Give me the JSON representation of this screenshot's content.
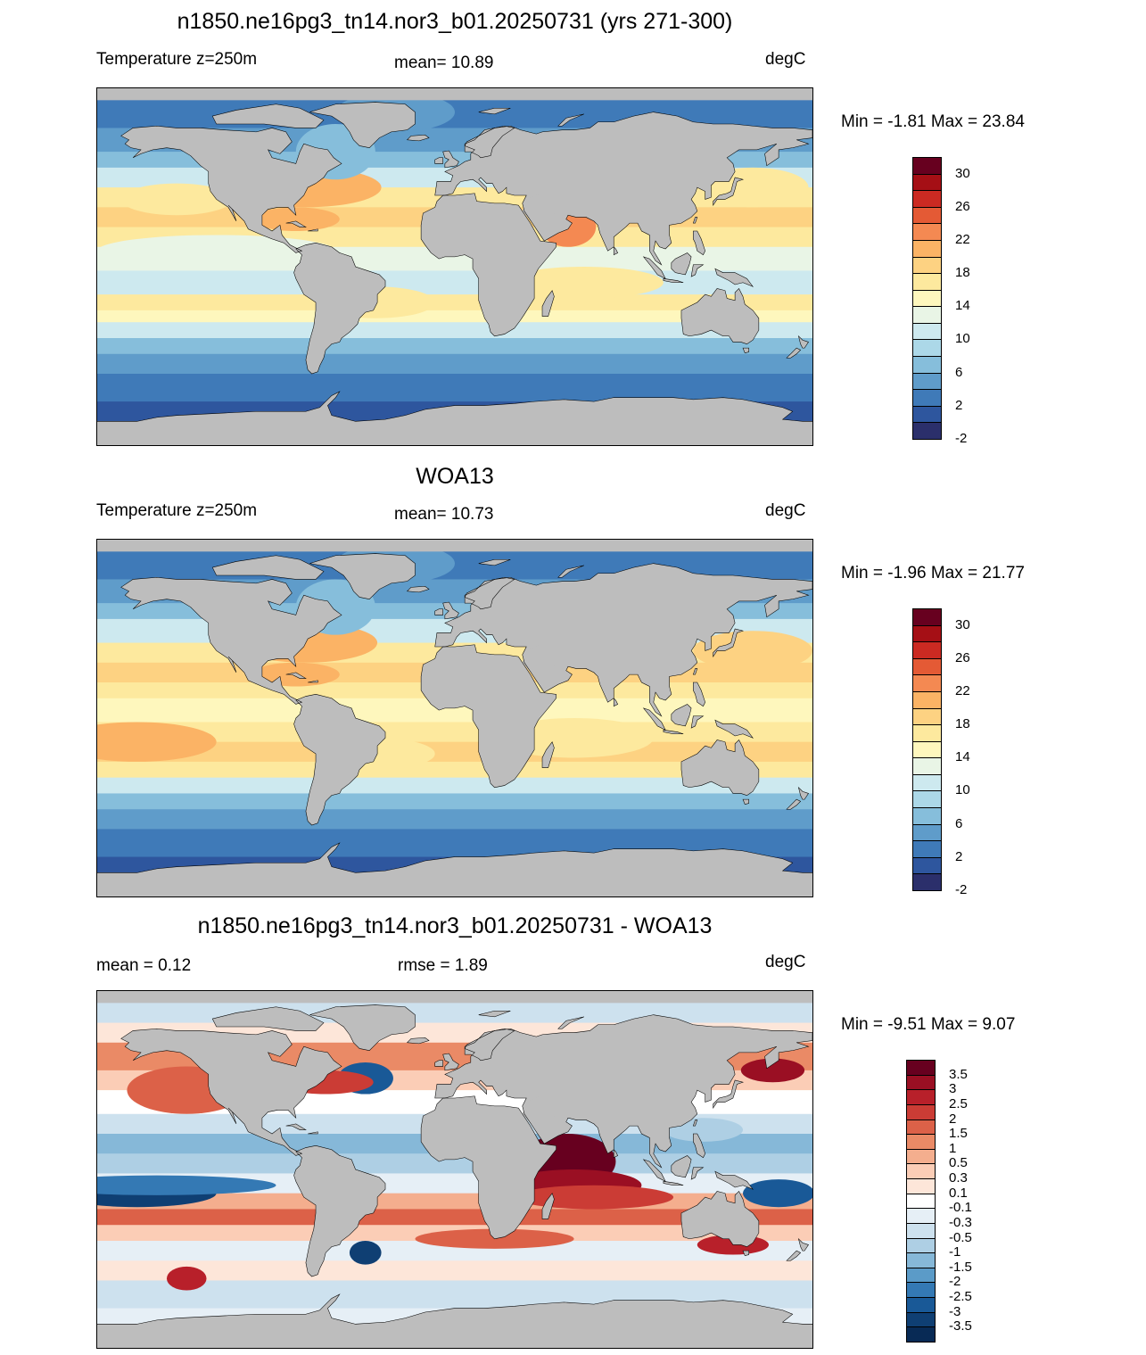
{
  "panels": [
    {
      "id": "model",
      "title": "n1850.ne16pg3_tn14.nor3_b01.20250731 (yrs 271-300)",
      "left_label": "Temperature z=250m",
      "center_label": "mean=  10.89",
      "units": "degC",
      "minmax": "Min =  -1.81 Max =  23.84",
      "colorbar": {
        "labels": [
          "30",
          "26",
          "22",
          "18",
          "14",
          "10",
          "6",
          "2",
          "-2"
        ],
        "colors": [
          "#67001f",
          "#a50f15",
          "#cb2a22",
          "#e45a35",
          "#f48952",
          "#fbb365",
          "#fdd282",
          "#fde99e",
          "#fef7bd",
          "#e9f5e6",
          "#cde9ef",
          "#acd8e8",
          "#86bedb",
          "#5f9cca",
          "#3f7ab8",
          "#2e569e",
          "#2b2f6b"
        ]
      },
      "field": "model"
    },
    {
      "id": "obs",
      "title": "WOA13",
      "left_label": "Temperature z=250m",
      "center_label": "mean=  10.73",
      "units": "degC",
      "minmax": "Min =  -1.96 Max =  21.77",
      "colorbar": {
        "labels": [
          "30",
          "26",
          "22",
          "18",
          "14",
          "10",
          "6",
          "2",
          "-2"
        ],
        "colors": [
          "#67001f",
          "#a50f15",
          "#cb2a22",
          "#e45a35",
          "#f48952",
          "#fbb365",
          "#fdd282",
          "#fde99e",
          "#fef7bd",
          "#e9f5e6",
          "#cde9ef",
          "#acd8e8",
          "#86bedb",
          "#5f9cca",
          "#3f7ab8",
          "#2e569e",
          "#2b2f6b"
        ]
      },
      "field": "obs"
    },
    {
      "id": "diff",
      "title": "n1850.ne16pg3_tn14.nor3_b01.20250731 - WOA13",
      "left_label": "mean =   0.12",
      "center_label": "rmse =   1.89",
      "units": "degC",
      "minmax": "Min =  -9.51 Max =   9.07",
      "colorbar": {
        "labels": [
          "3.5",
          "3",
          "2.5",
          "2",
          "1.5",
          "1",
          "0.5",
          "0.3",
          "0.1",
          "-0.1",
          "-0.3",
          "-0.5",
          "-1",
          "-1.5",
          "-2",
          "-2.5",
          "-3",
          "-3.5"
        ],
        "colors": [
          "#67001f",
          "#9a0f23",
          "#b8202a",
          "#cb3c35",
          "#dc6148",
          "#ea8a66",
          "#f4ae8e",
          "#fbcdb6",
          "#fde6d9",
          "#ffffff",
          "#e6eff6",
          "#cde1ee",
          "#aecfe4",
          "#86b8d8",
          "#5b9bc8",
          "#3479b4",
          "#195997",
          "#0f3f73",
          "#082a55"
        ]
      },
      "field": "diff"
    }
  ],
  "colors": {
    "land": "#bdbdbd",
    "coast": "#000000"
  }
}
